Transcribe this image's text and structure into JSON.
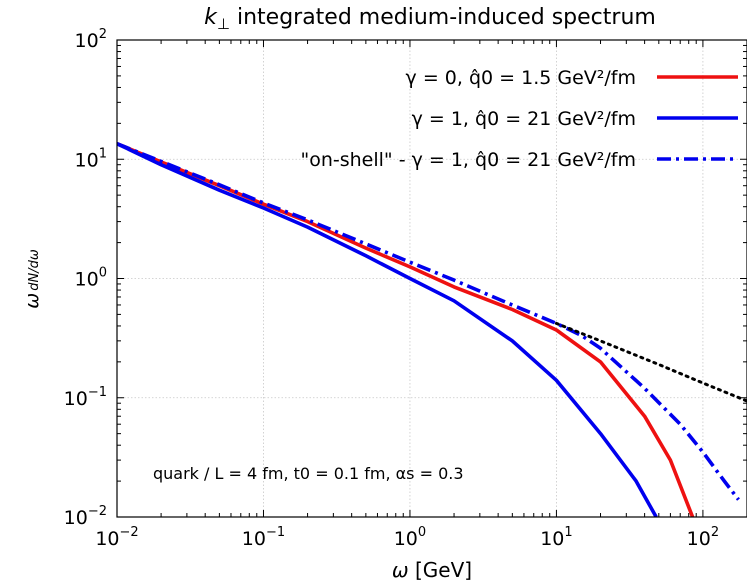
{
  "chart_data": {
    "type": "line",
    "title": "k⊥ integrated medium-induced spectrum",
    "xlabel": "ω [GeV]",
    "ylabel": "ω dN/dω",
    "xscale": "log",
    "yscale": "log",
    "xlim": [
      0.01,
      200
    ],
    "ylim": [
      0.01,
      100
    ],
    "grid": true,
    "legend_position": "top-right",
    "x_ticks": [
      {
        "value": 0.01,
        "base": "10",
        "exp": "−2"
      },
      {
        "value": 0.1,
        "base": "10",
        "exp": "−1"
      },
      {
        "value": 1,
        "base": "10",
        "exp": "0"
      },
      {
        "value": 10,
        "base": "10",
        "exp": "1"
      },
      {
        "value": 100,
        "base": "10",
        "exp": "2"
      }
    ],
    "y_ticks": [
      {
        "value": 0.01,
        "base": "10",
        "exp": "−2"
      },
      {
        "value": 0.1,
        "base": "10",
        "exp": "−1"
      },
      {
        "value": 1,
        "base": "10",
        "exp": "0"
      },
      {
        "value": 10,
        "base": "10",
        "exp": "1"
      },
      {
        "value": 100,
        "base": "10",
        "exp": "2"
      }
    ],
    "annotation": "quark / L = 4 fm, t0 = 0.1 fm, αs = 0.3",
    "series": [
      {
        "name": "γ = 0, q̂0 = 1.5 GeV²/fm",
        "color": "#ee1111",
        "dash": "solid",
        "x": [
          0.01,
          0.02,
          0.05,
          0.1,
          0.2,
          0.5,
          1,
          2,
          5,
          10,
          20,
          40,
          60,
          85
        ],
        "y": [
          13.5,
          9.5,
          6.0,
          4.2,
          3.0,
          1.8,
          1.25,
          0.85,
          0.55,
          0.37,
          0.2,
          0.07,
          0.03,
          0.01
        ]
      },
      {
        "name": "γ = 1, q̂0 = 21 GeV²/fm",
        "color": "#0000ee",
        "dash": "solid",
        "x": [
          0.01,
          0.02,
          0.05,
          0.1,
          0.2,
          0.5,
          1,
          2,
          5,
          10,
          20,
          35,
          48
        ],
        "y": [
          13.5,
          9.0,
          5.5,
          3.9,
          2.7,
          1.55,
          1.0,
          0.65,
          0.3,
          0.14,
          0.05,
          0.02,
          0.01
        ]
      },
      {
        "name": "\"on-shell\" - γ = 1, q̂0 = 21 GeV²/fm",
        "color": "#0000ee",
        "dash": "dashdot",
        "x": [
          0.01,
          0.02,
          0.05,
          0.1,
          0.2,
          0.5,
          1,
          2,
          5,
          10,
          15,
          20,
          40,
          70,
          100,
          140,
          175
        ],
        "y": [
          13.5,
          9.6,
          6.1,
          4.3,
          3.1,
          1.95,
          1.37,
          0.97,
          0.6,
          0.42,
          0.33,
          0.26,
          0.12,
          0.06,
          0.035,
          0.02,
          0.014
        ]
      },
      {
        "name": "",
        "color": "#000000",
        "dash": "dotted",
        "x": [
          10,
          20,
          50,
          100,
          200
        ],
        "y": [
          0.42,
          0.3,
          0.19,
          0.133,
          0.094
        ]
      }
    ]
  }
}
